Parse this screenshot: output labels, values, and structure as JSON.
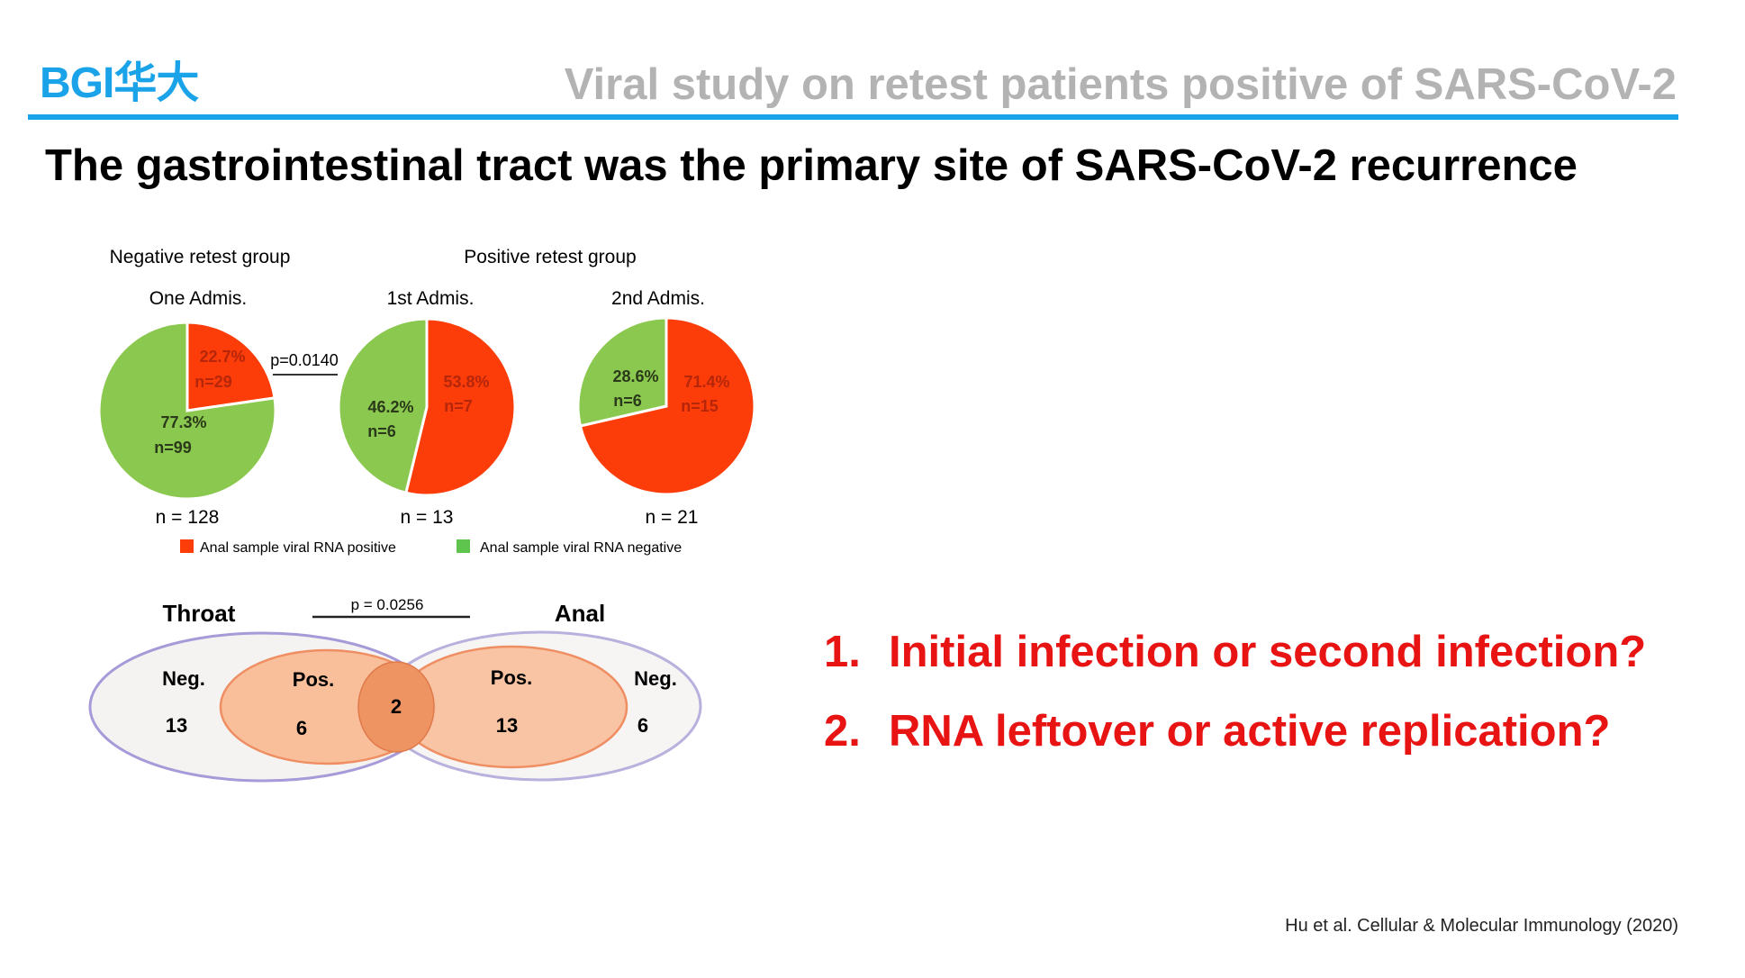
{
  "header": {
    "logo_text": "BGI华大",
    "slide_title": "Viral study on retest patients positive of SARS-CoV-2",
    "headline": "The gastrointestinal tract was the primary site of SARS-CoV-2 recurrence"
  },
  "chart_data": [
    {
      "type": "pie",
      "group_labels": [
        "Negative retest group",
        "Positive retest group"
      ],
      "legend": [
        "Anal sample viral RNA positive",
        "Anal sample viral RNA negative"
      ],
      "colors": {
        "positive": "#fc3d09",
        "negative": "#8bc84f"
      },
      "pies": [
        {
          "title": "One Admis.",
          "total_label": "n = 128",
          "slices": [
            {
              "pct": "22.7%",
              "n": "n=29",
              "value": 22.7,
              "cat": "positive"
            },
            {
              "pct": "77.3%",
              "n": "n=99",
              "value": 77.3,
              "cat": "negative"
            }
          ]
        },
        {
          "title": "1st Admis.",
          "total_label": "n = 13",
          "slices": [
            {
              "pct": "53.8%",
              "n": "n=7",
              "value": 53.8,
              "cat": "positive"
            },
            {
              "pct": "46.2%",
              "n": "n=6",
              "value": 46.2,
              "cat": "negative"
            }
          ]
        },
        {
          "title": "2nd Admis.",
          "total_label": "n = 21",
          "slices": [
            {
              "pct": "71.4%",
              "n": "n=15",
              "value": 71.4,
              "cat": "positive"
            },
            {
              "pct": "28.6%",
              "n": "n=6",
              "value": 28.6,
              "cat": "negative"
            }
          ]
        }
      ],
      "comparison": "p=0.0140"
    },
    {
      "type": "venn",
      "set_labels": [
        "Throat",
        "Anal"
      ],
      "comparison": "p = 0.0256",
      "regions": {
        "throat_neg": {
          "label": "Neg.",
          "value": "13"
        },
        "throat_pos": {
          "label": "Pos.",
          "value": "6"
        },
        "both": {
          "value": "2"
        },
        "anal_pos": {
          "label": "Pos.",
          "value": "13"
        },
        "anal_neg": {
          "label": "Neg.",
          "value": "6"
        }
      }
    }
  ],
  "questions": [
    {
      "num": "1.",
      "text": "Initial infection or second infection?"
    },
    {
      "num": "2.",
      "text": "RNA leftover or active replication?"
    }
  ],
  "citation": "Hu et al. Cellular & Molecular Immunology  (2020)"
}
